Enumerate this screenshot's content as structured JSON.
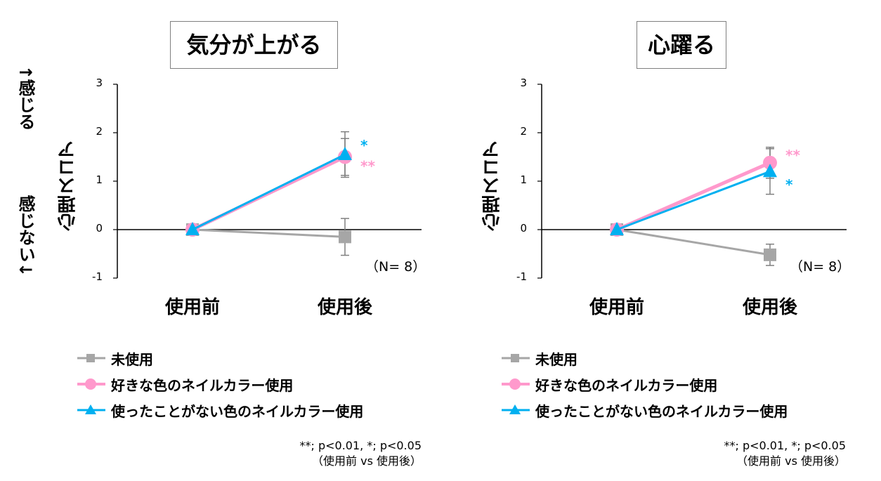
{
  "side_labels": {
    "top": "↑感じる",
    "bottom": "感じない↓"
  },
  "chart_data": [
    {
      "type": "line",
      "title": "気分が上がる",
      "ylabel": "心理スコア",
      "categories": [
        "使用前",
        "使用後"
      ],
      "ylim": [
        -1,
        3
      ],
      "yticks": [
        "3",
        "2",
        "1",
        "0",
        "-1"
      ],
      "n_label": "（N= 8）",
      "series": [
        {
          "name": "未使用",
          "marker": "square",
          "color": "#a6a6a6",
          "values": [
            0,
            -0.15
          ],
          "err": [
            0,
            0.38
          ]
        },
        {
          "name": "好きな色のネイルカラー使用",
          "marker": "circle",
          "color": "#ff99cc",
          "values": [
            0,
            1.5
          ],
          "err": [
            0,
            0.38
          ]
        },
        {
          "name": "使ったことがない色のネイルカラー使用",
          "marker": "triangle",
          "color": "#00b0f0",
          "values": [
            0,
            1.55
          ],
          "err": [
            0,
            0.47
          ]
        }
      ],
      "significance": [
        {
          "series": 2,
          "label": "*",
          "color": "#00b0f0"
        },
        {
          "series": 1,
          "label": "**",
          "color": "#ff99cc"
        }
      ],
      "legend": [
        "未使用",
        "好きな色のネイルカラー使用",
        "使ったことがない色のネイルカラー使用"
      ],
      "note_line1": "**; p<0.01, *; p<0.05",
      "note_line2": "（使用前 vs 使用後）"
    },
    {
      "type": "line",
      "title": "心躍る",
      "ylabel": "心理スコア",
      "categories": [
        "使用前",
        "使用後"
      ],
      "ylim": [
        -1,
        3
      ],
      "yticks": [
        "3",
        "2",
        "1",
        "0",
        "-1"
      ],
      "n_label": "（N= 8）",
      "series": [
        {
          "name": "未使用",
          "marker": "square",
          "color": "#a6a6a6",
          "values": [
            0,
            -0.52
          ],
          "err": [
            0,
            0.22
          ]
        },
        {
          "name": "好きな色のネイルカラー使用",
          "marker": "circle",
          "color": "#ff99cc",
          "values": [
            0,
            1.38
          ],
          "err": [
            0,
            0.32
          ]
        },
        {
          "name": "使ったことがない色のネイルカラー使用",
          "marker": "triangle",
          "color": "#00b0f0",
          "values": [
            0,
            1.2
          ],
          "err": [
            0,
            0.47
          ]
        }
      ],
      "significance": [
        {
          "series": 1,
          "label": "**",
          "color": "#ff99cc"
        },
        {
          "series": 2,
          "label": "*",
          "color": "#00b0f0"
        }
      ],
      "legend": [
        "未使用",
        "好きな色のネイルカラー使用",
        "使ったことがない色のネイルカラー使用"
      ],
      "note_line1": "**; p<0.01, *; p<0.05",
      "note_line2": "（使用前 vs 使用後）"
    }
  ]
}
